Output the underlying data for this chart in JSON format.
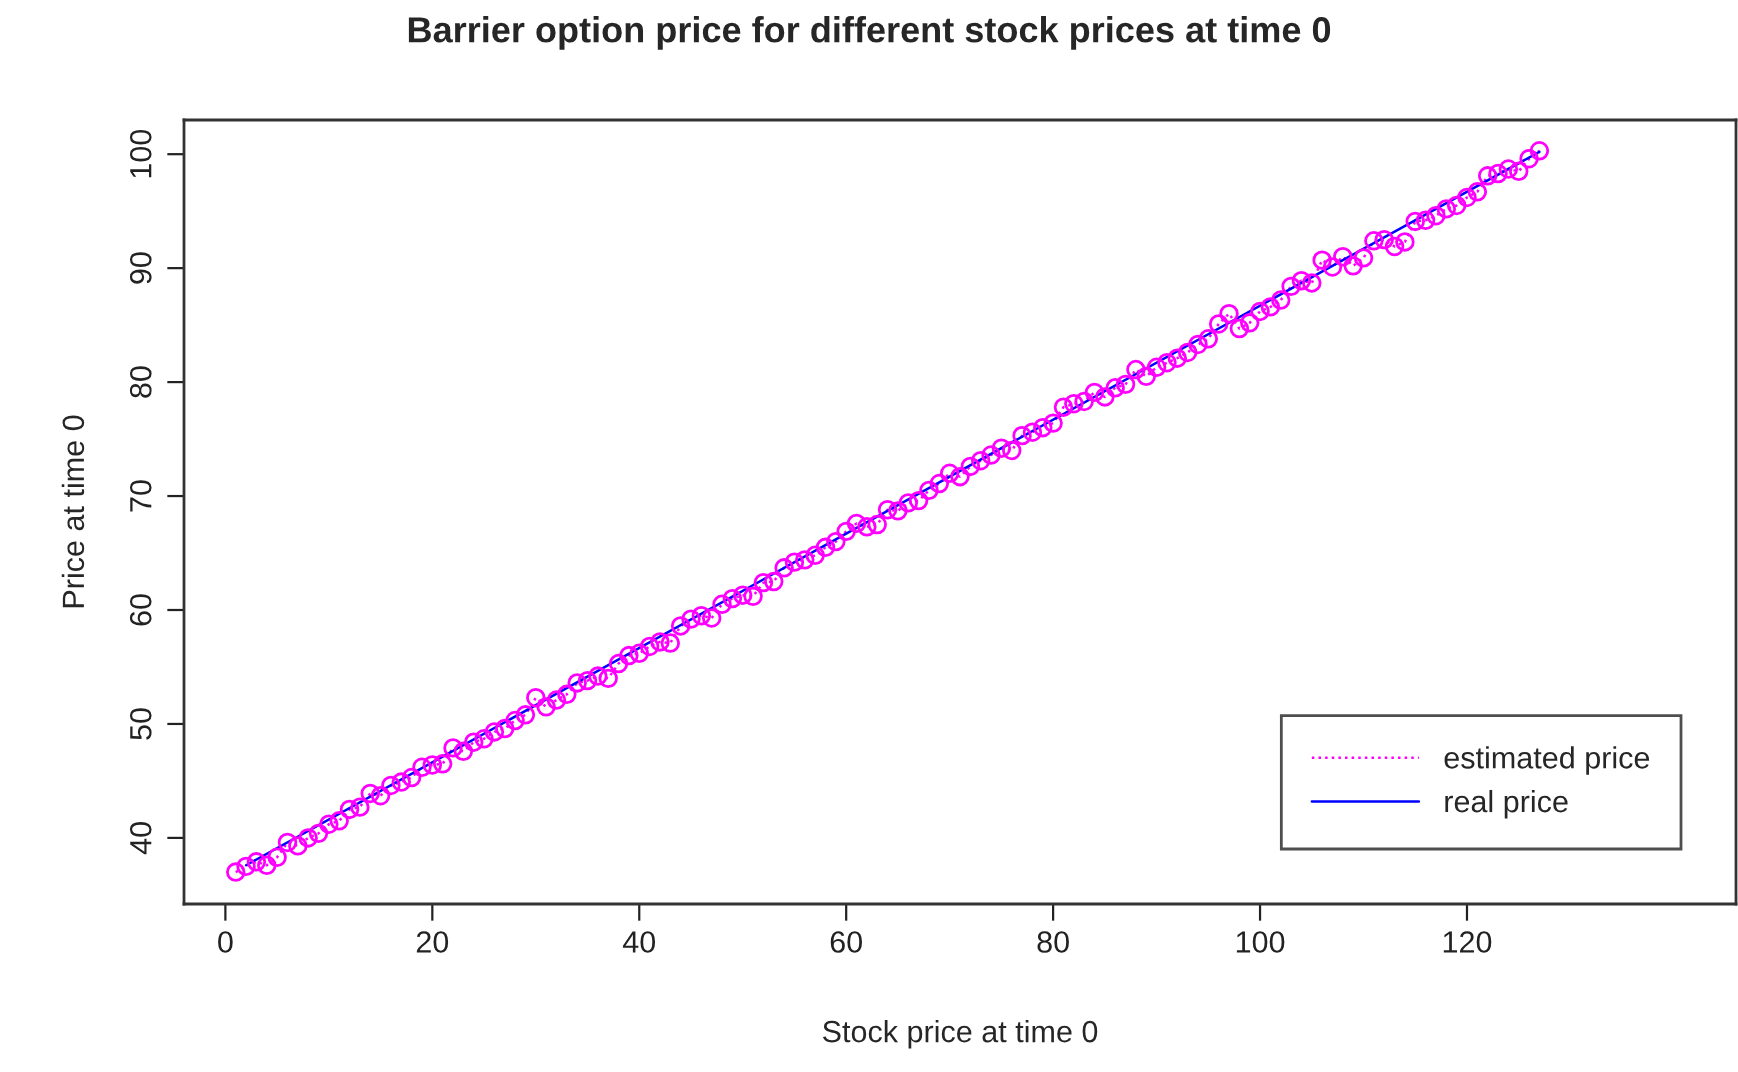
{
  "chart_data": {
    "type": "line",
    "title": "Barrier option price for different stock prices at time 0",
    "xlabel": "Stock price at time 0",
    "ylabel": "Price at time 0",
    "x": [
      1,
      2,
      3,
      4,
      5,
      6,
      7,
      8,
      9,
      10,
      11,
      12,
      13,
      14,
      15,
      16,
      17,
      18,
      19,
      20,
      21,
      22,
      23,
      24,
      25,
      26,
      27,
      28,
      29,
      30,
      31,
      32,
      33,
      34,
      35,
      36,
      37,
      38,
      39,
      40,
      41,
      42,
      43,
      44,
      45,
      46,
      47,
      48,
      49,
      50,
      51,
      52,
      53,
      54,
      55,
      56,
      57,
      58,
      59,
      60,
      61,
      62,
      63,
      64,
      65,
      66,
      67,
      68,
      69,
      70,
      71,
      72,
      73,
      74,
      75,
      76,
      77,
      78,
      79,
      80,
      81,
      82,
      83,
      84,
      85,
      86,
      87,
      88,
      89,
      90,
      91,
      92,
      93,
      94,
      95,
      96,
      97,
      98,
      99,
      100,
      101,
      102,
      103,
      104,
      105,
      106,
      107,
      108,
      109,
      110,
      111,
      112,
      113,
      114,
      115,
      116,
      117,
      118,
      119,
      120,
      121,
      122,
      123,
      124,
      125,
      126,
      127
    ],
    "series": [
      {
        "name": "estimated price",
        "color": "#ff00ff",
        "marker": "circle",
        "line_style": "dotted",
        "values": [
          37.0,
          37.5,
          37.9,
          37.6,
          38.3,
          39.6,
          39.3,
          40.0,
          40.4,
          41.2,
          41.5,
          42.5,
          42.7,
          43.9,
          43.7,
          44.6,
          44.9,
          45.3,
          46.2,
          46.4,
          46.5,
          47.9,
          47.6,
          48.4,
          48.7,
          49.3,
          49.6,
          50.3,
          50.8,
          52.3,
          51.5,
          52.1,
          52.6,
          53.6,
          53.8,
          54.2,
          54.0,
          55.3,
          56.0,
          56.2,
          56.8,
          57.2,
          57.1,
          58.6,
          59.2,
          59.5,
          59.3,
          60.5,
          61.0,
          61.3,
          61.2,
          62.4,
          62.5,
          63.7,
          64.2,
          64.4,
          64.8,
          65.5,
          66.0,
          66.9,
          67.6,
          67.3,
          67.5,
          68.8,
          68.7,
          69.4,
          69.6,
          70.5,
          71.1,
          72.0,
          71.7,
          72.6,
          73.1,
          73.6,
          74.2,
          74.0,
          75.3,
          75.6,
          76.0,
          76.4,
          77.8,
          78.1,
          78.3,
          79.1,
          78.7,
          79.5,
          79.8,
          81.1,
          80.5,
          81.3,
          81.7,
          82.1,
          82.6,
          83.3,
          83.8,
          85.1,
          86.0,
          84.7,
          85.2,
          86.2,
          86.6,
          87.2,
          88.4,
          88.9,
          88.7,
          90.7,
          90.1,
          91.0,
          90.2,
          90.9,
          92.4,
          92.5,
          91.9,
          92.3,
          94.1,
          94.2,
          94.6,
          95.2,
          95.5,
          96.2,
          96.7,
          98.1,
          98.3,
          98.7,
          98.5,
          99.6,
          100.3
        ]
      },
      {
        "name": "real price",
        "color": "#0000ff",
        "marker": "none",
        "line_style": "solid",
        "x": [
          2,
          60,
          127
        ],
        "values": [
          37.6,
          66.7,
          100.2
        ]
      }
    ],
    "xlim": [
      -4,
      146
    ],
    "ylim": [
      34.2,
      103
    ],
    "xticks": [
      0,
      20,
      40,
      60,
      80,
      100,
      120
    ],
    "yticks": [
      40,
      50,
      60,
      70,
      80,
      90,
      100
    ],
    "grid": false,
    "legend": "bottom right"
  }
}
